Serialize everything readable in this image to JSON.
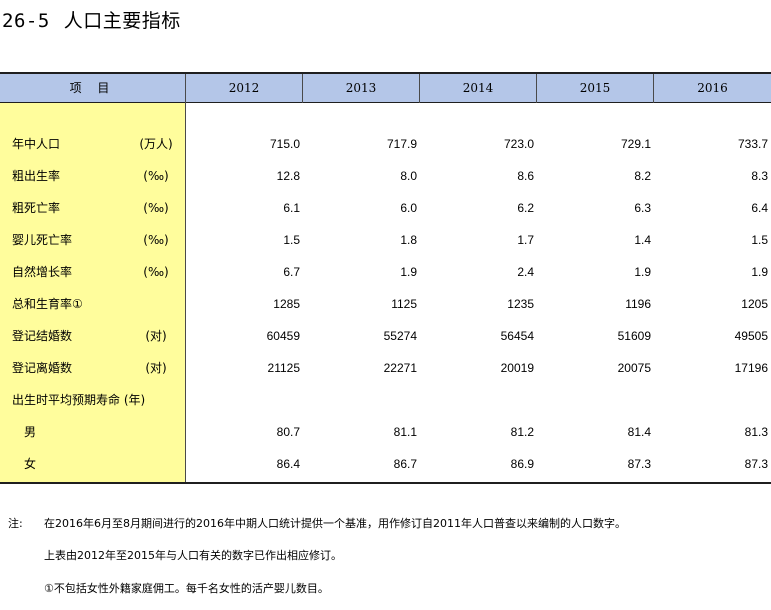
{
  "title": {
    "number": "26-5",
    "text": "人口主要指标"
  },
  "table": {
    "header": [
      "项 目",
      "2012",
      "2013",
      "2014",
      "2015",
      "2016"
    ],
    "rows": [
      {
        "label": "年中人口",
        "unit": "(万人)",
        "values": [
          "715.0",
          "717.9",
          "723.0",
          "729.1",
          "733.7"
        ]
      },
      {
        "label": "粗出生率",
        "unit": "(‰)",
        "values": [
          "12.8",
          "8.0",
          "8.6",
          "8.2",
          "8.3"
        ]
      },
      {
        "label": "粗死亡率",
        "unit": "(‰)",
        "values": [
          "6.1",
          "6.0",
          "6.2",
          "6.3",
          "6.4"
        ]
      },
      {
        "label": "婴儿死亡率",
        "unit": "(‰)",
        "values": [
          "1.5",
          "1.8",
          "1.7",
          "1.4",
          "1.5"
        ]
      },
      {
        "label": "自然增长率",
        "unit": "(‰)",
        "values": [
          "6.7",
          "1.9",
          "2.4",
          "1.9",
          "1.9"
        ]
      },
      {
        "label": "总和生育率①",
        "unit": "",
        "values": [
          "1285",
          "1125",
          "1235",
          "1196",
          "1205"
        ]
      },
      {
        "label": "登记结婚数",
        "unit": "(对)",
        "values": [
          "60459",
          "55274",
          "56454",
          "51609",
          "49505"
        ]
      },
      {
        "label": "登记离婚数",
        "unit": "(对)",
        "values": [
          "21125",
          "22271",
          "20019",
          "20075",
          "17196"
        ]
      },
      {
        "label": "出生时平均预期寿命 (年)",
        "unit": "",
        "values": [
          "",
          "",
          "",
          "",
          ""
        ]
      },
      {
        "label": "男",
        "unit": "",
        "values": [
          "80.7",
          "81.1",
          "81.2",
          "81.4",
          "81.3"
        ]
      },
      {
        "label": "女",
        "unit": "",
        "values": [
          "86.4",
          "86.7",
          "86.9",
          "87.3",
          "87.3"
        ]
      }
    ]
  },
  "notes": {
    "prefix": "注:",
    "lines": [
      "在2016年6月至8月期间进行的2016年中期人口统计提供一个基准，用作修订自2011年人口普查以来编制的人口数字。",
      "上表由2012年至2015年与人口有关的数字已作出相应修订。",
      "①不包括女性外籍家庭佣工。每千名女性的活产婴儿数目。"
    ]
  }
}
